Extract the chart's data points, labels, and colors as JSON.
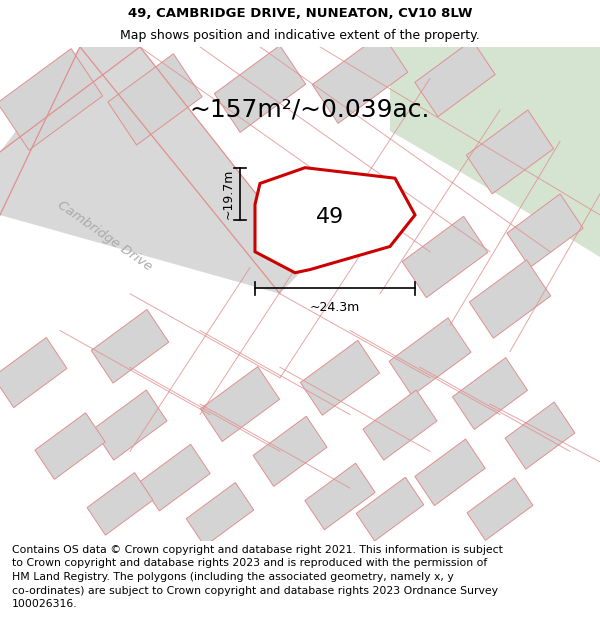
{
  "title_line1": "49, CAMBRIDGE DRIVE, NUNEATON, CV10 8LW",
  "title_line2": "Map shows position and indicative extent of the property.",
  "area_text": "~157m²/~0.039ac.",
  "label_49": "49",
  "road_label": "Cambridge Drive",
  "dim_width": "~24.3m",
  "dim_height": "~19.7m",
  "footer_text": "Contains OS data © Crown copyright and database right 2021. This information is subject\nto Crown copyright and database rights 2023 and is reproduced with the permission of\nHM Land Registry. The polygons (including the associated geometry, namely x, y\nco-ordinates) are subject to Crown copyright and database rights 2023 Ordnance Survey\n100026316.",
  "bg_color_main": "#e8e8e8",
  "bg_color_green": "#d4e4d0",
  "highlight_color": "#cc0000",
  "road_line_color": "#e09090",
  "title_fontsize": 9.5,
  "subtitle_fontsize": 9.0,
  "area_fontsize": 18,
  "label_fontsize": 16,
  "road_label_fontsize": 9.5,
  "dim_fontsize": 9,
  "footer_fontsize": 7.8,
  "map_bg": "#e8e8e8"
}
